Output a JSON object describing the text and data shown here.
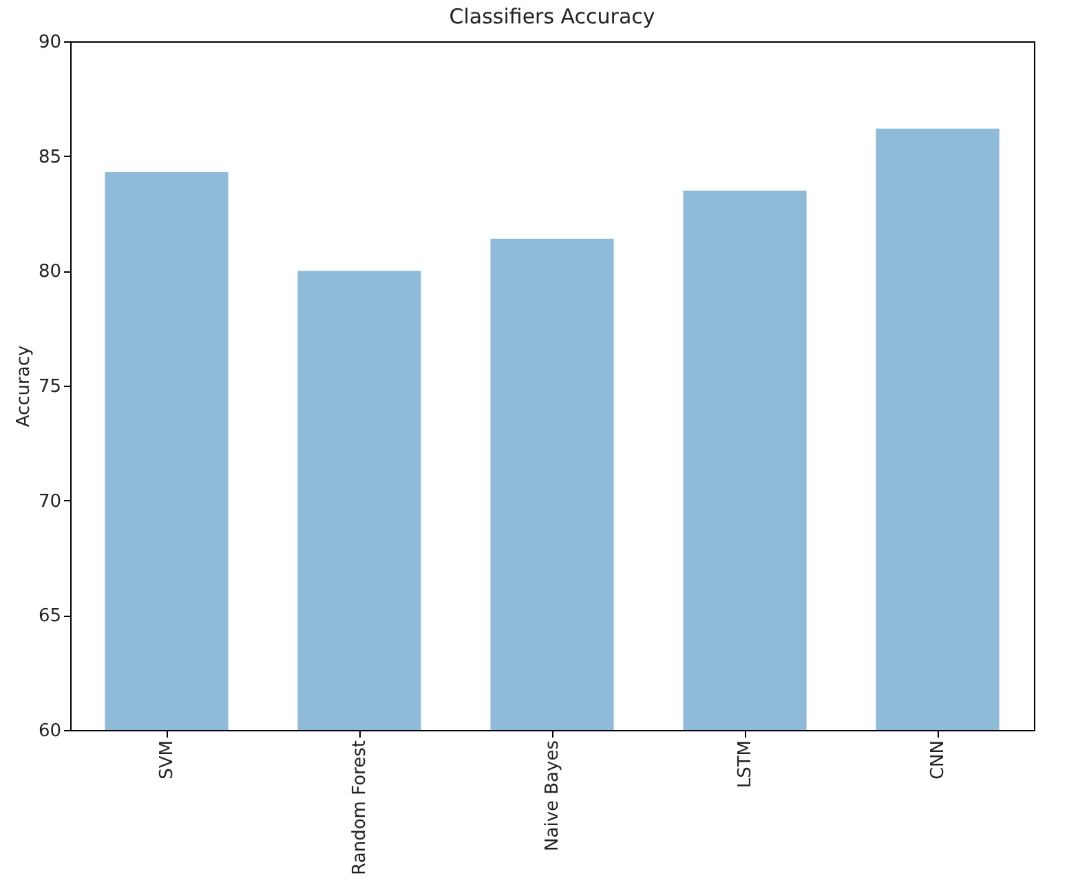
{
  "chart_data": {
    "type": "bar",
    "title": "Classifiers Accuracy",
    "ylabel": "Accuracy",
    "categories": [
      "SVM",
      "Random Forest",
      "Naive Bayes",
      "LSTM",
      "CNN"
    ],
    "values": [
      84.3,
      80.0,
      81.4,
      83.5,
      86.2
    ],
    "color": "#8fbbd9",
    "ylim": [
      60,
      90
    ],
    "yticks": [
      60,
      65,
      70,
      75,
      80,
      85,
      90
    ],
    "grid": false
  }
}
